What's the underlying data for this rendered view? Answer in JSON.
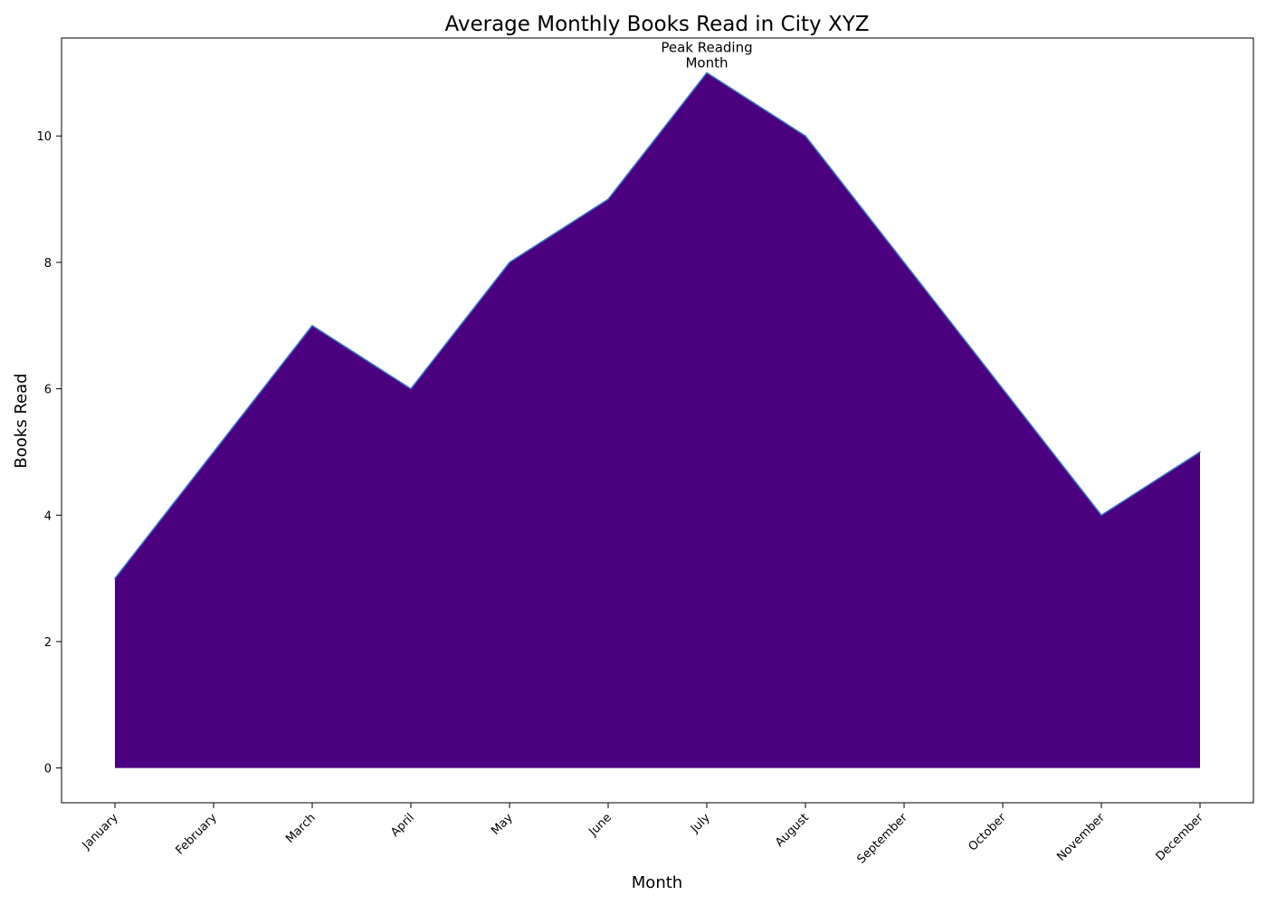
{
  "chart_data": {
    "type": "area",
    "title": "Average Monthly Books Read in City XYZ",
    "xlabel": "Month",
    "ylabel": "Books Read",
    "categories": [
      "January",
      "February",
      "March",
      "April",
      "May",
      "June",
      "July",
      "August",
      "September",
      "October",
      "November",
      "December"
    ],
    "values": [
      3,
      5,
      7,
      6,
      8,
      9,
      11,
      10,
      8,
      6,
      4,
      5
    ],
    "ylim": [
      -0.55,
      11.55
    ],
    "yticks": [
      0,
      2,
      4,
      6,
      8,
      10
    ],
    "grid": false,
    "fill_color": "#4b0080",
    "line_color": "#3a78c9",
    "annotation": {
      "lines": [
        "Peak Reading",
        "Month"
      ],
      "category": "July",
      "value": 11
    }
  }
}
